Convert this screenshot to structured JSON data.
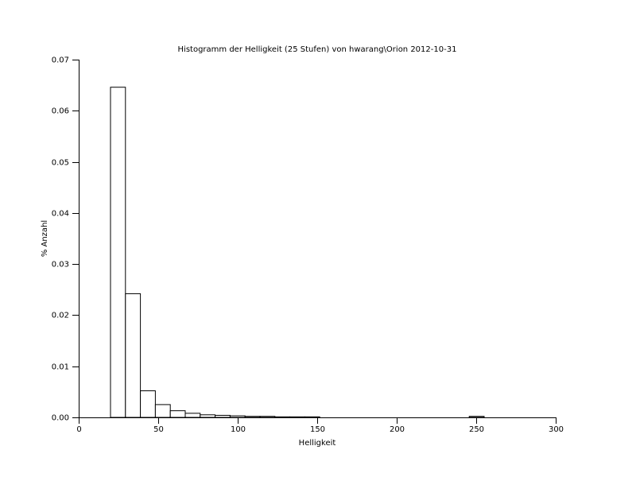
{
  "chart_data": {
    "type": "histogram",
    "title": "Histogramm der Helligkeit (25 Stufen) von hwarang\\Orion 2012-10-31",
    "xlabel": "Helligkeit",
    "ylabel": "% Anzahl",
    "bins": [
      20,
      29.4,
      38.8,
      48.2,
      57.6,
      67,
      76.4,
      85.8,
      95.2,
      104.6,
      114,
      123.4,
      132.8,
      142.2,
      151.6,
      161,
      170.4,
      179.8,
      189.2,
      198.6,
      208,
      217.4,
      226.8,
      236.2,
      245.6,
      255
    ],
    "values": [
      0.0646,
      0.0242,
      0.0052,
      0.0025,
      0.0013,
      0.0008,
      0.0005,
      0.0004,
      0.0003,
      0.0002,
      0.0002,
      0.0001,
      0.0001,
      0.0001,
      0,
      0,
      0,
      0,
      0,
      0,
      0,
      0,
      0,
      0,
      0.0002
    ],
    "color": "#ffffff",
    "xlim": [
      0,
      300
    ],
    "xticks": [
      0,
      50,
      100,
      150,
      200,
      250,
      300
    ],
    "ylim": [
      0,
      0.07
    ],
    "yticks": [
      {
        "value": 0,
        "label": "0.00"
      },
      0.01,
      0.02,
      0.03,
      0.04,
      0.05,
      0.06,
      0.07
    ]
  }
}
